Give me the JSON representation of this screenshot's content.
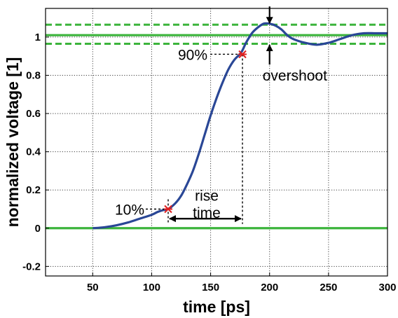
{
  "chart_data": {
    "type": "line",
    "title": "",
    "xlabel": "time [ps]",
    "ylabel": "normalized voltage [1]",
    "xlim": [
      10,
      300
    ],
    "ylim": [
      -0.25,
      1.15
    ],
    "x_ticks": [
      50,
      100,
      150,
      200,
      250,
      300
    ],
    "x_tick_labels": [
      "50",
      "100",
      "150",
      "200",
      "250",
      "300"
    ],
    "y_ticks": [
      -0.2,
      0,
      0.2,
      0.4,
      0.6,
      0.8,
      1
    ],
    "y_tick_labels": [
      "-0.2",
      "0",
      "0.2",
      "0.4",
      "0.6",
      "0.8",
      "1"
    ],
    "grid": true,
    "colors": {
      "curve": "#2a4796",
      "reference": "#3cb43c",
      "marker": "#e02020",
      "axis": "#000000"
    },
    "series": [
      {
        "style": "solid-blue",
        "x": [
          50,
          60,
          70,
          80,
          90,
          100,
          105,
          110,
          114,
          120,
          125,
          130,
          135,
          140,
          145,
          150,
          155,
          160,
          165,
          170,
          176,
          180,
          185,
          190,
          195,
          200,
          205,
          210,
          215,
          220,
          230,
          240,
          250,
          260,
          270,
          280,
          290,
          300
        ],
        "y": [
          0.0,
          0.005,
          0.015,
          0.03,
          0.05,
          0.07,
          0.085,
          0.095,
          0.1,
          0.13,
          0.17,
          0.23,
          0.3,
          0.39,
          0.49,
          0.59,
          0.68,
          0.76,
          0.83,
          0.88,
          0.92,
          0.97,
          1.02,
          1.05,
          1.07,
          1.07,
          1.06,
          1.04,
          1.01,
          0.99,
          0.97,
          0.96,
          0.97,
          0.99,
          1.01,
          1.02,
          1.02,
          1.02
        ]
      }
    ],
    "reference_lines": [
      {
        "y": 0,
        "style": "solid-green"
      },
      {
        "y": 1.01,
        "style": "solid-green"
      },
      {
        "y": 1.065,
        "style": "dashed-green"
      },
      {
        "y": 0.965,
        "style": "dashed-green"
      }
    ],
    "markers": [
      {
        "label": "10%",
        "x": 114,
        "y": 0.1
      },
      {
        "label": "90%",
        "x": 177,
        "y": 0.91
      }
    ],
    "annotations": {
      "label_10": "10%",
      "label_90": "90%",
      "rise_line1": "rise",
      "rise_line2": "time",
      "rise_time_from": 114,
      "rise_time_to": 177,
      "overshoot": "overshoot",
      "overshoot_x": 200,
      "overshoot_low": 1.01,
      "overshoot_high": 1.065
    }
  }
}
